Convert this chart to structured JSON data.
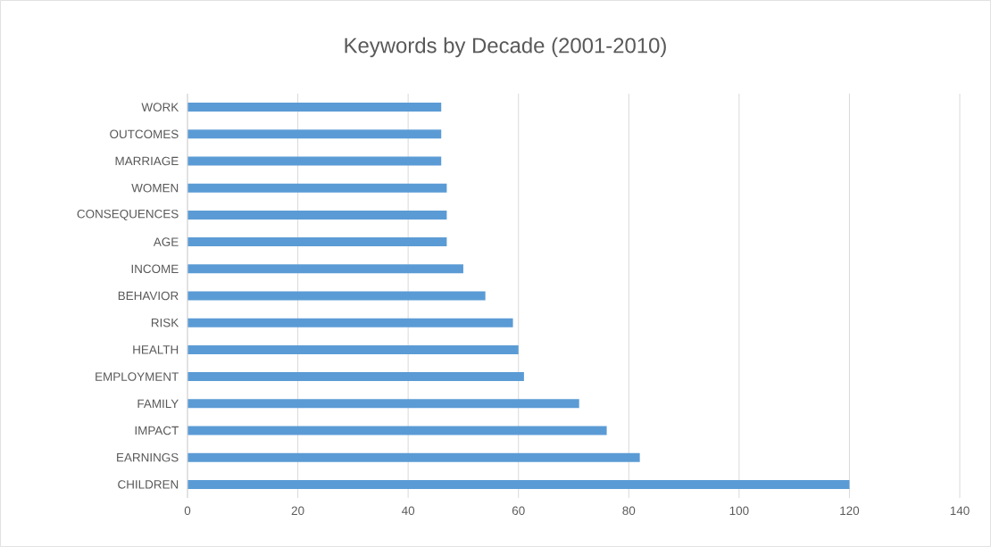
{
  "chart_data": {
    "type": "bar",
    "orientation": "horizontal",
    "title": "Keywords by Decade (2001-2010)",
    "categories": [
      "WORK",
      "OUTCOMES",
      "MARRIAGE",
      "WOMEN",
      "CONSEQUENCES",
      "AGE",
      "INCOME",
      "BEHAVIOR",
      "RISK",
      "HEALTH",
      "EMPLOYMENT",
      "FAMILY",
      "IMPACT",
      "EARNINGS",
      "CHILDREN"
    ],
    "values": [
      46,
      46,
      46,
      47,
      47,
      47,
      50,
      54,
      59,
      60,
      61,
      71,
      76,
      82,
      120
    ],
    "color": "#5b9bd5",
    "xlim": [
      0,
      140
    ],
    "xticks": [
      0,
      20,
      40,
      60,
      80,
      100,
      120,
      140
    ],
    "grid": "x"
  }
}
